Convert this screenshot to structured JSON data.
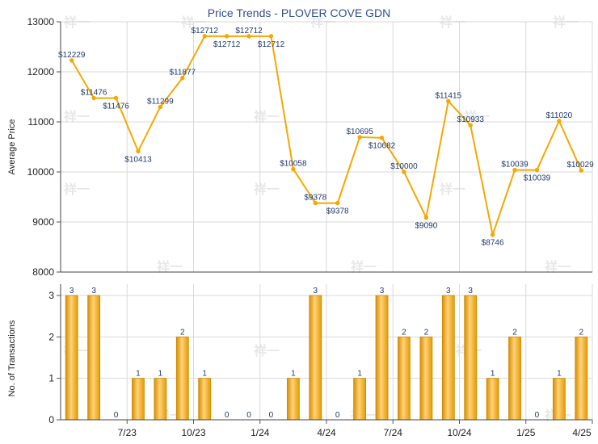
{
  "chart_data": [
    {
      "type": "line",
      "title": "Price Trends - PLOVER COVE GDN",
      "ylabel": "Average Price",
      "ylim": [
        8000,
        13000
      ],
      "yticks": [
        8000,
        9000,
        10000,
        11000,
        12000,
        13000
      ],
      "grid": true,
      "series_color": "#f5a800",
      "points": [
        {
          "x": 1,
          "y": 12229,
          "label": "$12229"
        },
        {
          "x": 2,
          "y": 11476,
          "label": "$11476"
        },
        {
          "x": 3,
          "y": 11476,
          "label": "$11476"
        },
        {
          "x": 4,
          "y": 10413,
          "label": "$10413"
        },
        {
          "x": 5,
          "y": 11299,
          "label": "$11299"
        },
        {
          "x": 6,
          "y": 11877,
          "label": "$11877"
        },
        {
          "x": 7,
          "y": 12712,
          "label": "$12712"
        },
        {
          "x": 8,
          "y": 12712,
          "label": "$12712"
        },
        {
          "x": 9,
          "y": 12712,
          "label": "$12712"
        },
        {
          "x": 10,
          "y": 12712,
          "label": "$12712"
        },
        {
          "x": 11,
          "y": 10058,
          "label": "$10058"
        },
        {
          "x": 12,
          "y": 9378,
          "label": "$9378"
        },
        {
          "x": 13,
          "y": 9378,
          "label": "$9378"
        },
        {
          "x": 14,
          "y": 10695,
          "label": "$10695"
        },
        {
          "x": 15,
          "y": 10682,
          "label": "$10682"
        },
        {
          "x": 16,
          "y": 10000,
          "label": "$10000"
        },
        {
          "x": 17,
          "y": 9090,
          "label": "$9090"
        },
        {
          "x": 18,
          "y": 11415,
          "label": "$11415"
        },
        {
          "x": 19,
          "y": 10933,
          "label": "$10933"
        },
        {
          "x": 20,
          "y": 8746,
          "label": "$8746"
        },
        {
          "x": 21,
          "y": 10039,
          "label": "$10039"
        },
        {
          "x": 22,
          "y": 10039,
          "label": "$10039"
        },
        {
          "x": 23,
          "y": 11020,
          "label": "$11020"
        },
        {
          "x": 24,
          "y": 10029,
          "label": "$10029"
        }
      ]
    },
    {
      "type": "bar",
      "ylabel": "No. of Transactions",
      "ylim": [
        0,
        3
      ],
      "yticks": [
        0,
        1,
        2,
        3
      ],
      "grid": true,
      "bar_color": "#f5a800",
      "values": [
        3,
        3,
        0,
        1,
        1,
        2,
        1,
        0,
        0,
        0,
        1,
        3,
        0,
        1,
        3,
        2,
        2,
        3,
        3,
        1,
        2,
        0,
        1,
        2
      ],
      "xticks": [
        {
          "x": 3.5,
          "label": "7/23"
        },
        {
          "x": 6.5,
          "label": "10/23"
        },
        {
          "x": 9.5,
          "label": "1/24"
        },
        {
          "x": 12.5,
          "label": "4/24"
        },
        {
          "x": 15.5,
          "label": "7/24"
        },
        {
          "x": 18.5,
          "label": "10/24"
        },
        {
          "x": 21.5,
          "label": "1/25"
        },
        {
          "x": 24.5,
          "label": "4/25"
        }
      ]
    }
  ],
  "watermark": "祥一"
}
